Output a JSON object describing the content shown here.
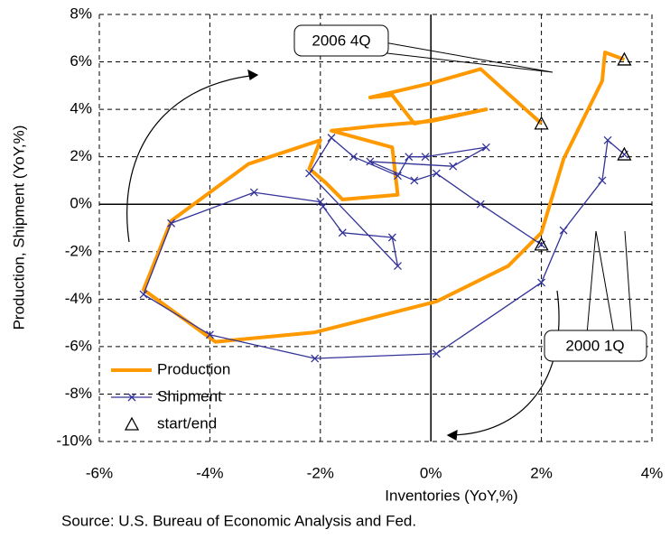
{
  "chart_data": {
    "type": "line",
    "x_label": "Inventories (YoY,%)",
    "y_label": "Production, Shipment (YoY,%)",
    "source": "Source: U.S. Bureau of Economic Analysis and Fed.",
    "annotations": [
      "2006 4Q",
      "2000 1Q"
    ],
    "xlim": [
      -6,
      4
    ],
    "ylim": [
      -10,
      8
    ],
    "xticks": [
      {
        "value": -6,
        "label": "-6%"
      },
      {
        "value": -4,
        "label": "-4%"
      },
      {
        "value": -2,
        "label": "-2%"
      },
      {
        "value": 0,
        "label": "0%"
      },
      {
        "value": 2,
        "label": "2%"
      },
      {
        "value": 4,
        "label": "4%"
      }
    ],
    "yticks": [
      {
        "value": -10,
        "label": "-10%"
      },
      {
        "value": -8,
        "label": "-8%"
      },
      {
        "value": -6,
        "label": "-6%"
      },
      {
        "value": -4,
        "label": "-4%"
      },
      {
        "value": -2,
        "label": "-2%"
      },
      {
        "value": 0,
        "label": "0%"
      },
      {
        "value": 2,
        "label": "2%"
      },
      {
        "value": 4,
        "label": "4%"
      },
      {
        "value": 6,
        "label": "6%"
      },
      {
        "value": 8,
        "label": "8%"
      }
    ],
    "grid": true,
    "legend": "lower left",
    "series": [
      {
        "name": "Production",
        "color": "#ff9900",
        "marker": "none",
        "x": [
          3.5,
          3.15,
          3.1,
          2.4,
          2.0,
          1.4,
          0.1,
          -2.1,
          -3.9,
          -5.2,
          -4.7,
          -3.3,
          -2.0,
          -2.2,
          -1.9,
          -1.6,
          -0.6,
          -0.7,
          -1.8,
          -1.0,
          0.0,
          1.0,
          -0.3,
          -0.7,
          -1.1,
          0.0,
          0.9,
          2.0
        ],
        "values": [
          6.1,
          6.4,
          5.2,
          1.9,
          -1.2,
          -2.6,
          -4.1,
          -5.4,
          -5.8,
          -3.6,
          -0.7,
          1.7,
          2.7,
          1.5,
          0.9,
          0.2,
          0.4,
          2.4,
          3.1,
          3.3,
          3.5,
          4.0,
          3.4,
          4.6,
          4.5,
          5.1,
          5.7,
          3.4
        ]
      },
      {
        "name": "Shipment",
        "color": "#333399",
        "marker": "x",
        "x": [
          3.5,
          3.2,
          3.1,
          2.4,
          2.0,
          0.1,
          -2.1,
          -4.0,
          -5.2,
          -4.7,
          -3.2,
          -2.0,
          -1.95,
          -1.6,
          -0.7,
          -0.6,
          -2.2,
          -1.8,
          -1.4,
          -0.6,
          -0.4,
          -0.1,
          1.0,
          0.4,
          -1.1,
          -0.3,
          0.1,
          0.9,
          2.0
        ],
        "values": [
          2.1,
          2.7,
          1.0,
          -1.1,
          -3.3,
          -6.3,
          -6.5,
          -5.5,
          -3.8,
          -0.8,
          0.5,
          0.1,
          -0.1,
          -1.2,
          -1.4,
          -2.6,
          1.3,
          2.8,
          2.0,
          1.2,
          2.0,
          2.0,
          2.4,
          1.6,
          1.8,
          1.0,
          1.3,
          0.0,
          -1.7
        ]
      },
      {
        "name": "start/end",
        "color": "#000000",
        "marker": "triangle",
        "x": [
          3.5,
          3.5,
          2.0,
          2.0
        ],
        "values": [
          6.1,
          2.1,
          3.4,
          -1.7
        ]
      }
    ]
  }
}
